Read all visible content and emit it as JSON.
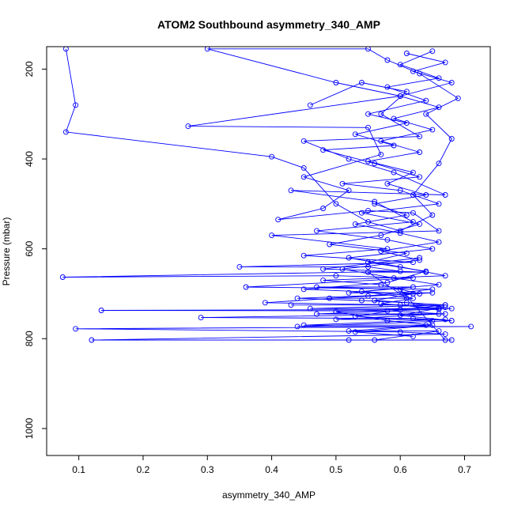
{
  "chart_data": {
    "type": "line",
    "title": "ATOM2 Southbound asymmetry_340_AMP",
    "xlabel": "asymmetry_340_AMP",
    "ylabel": "Pressure (mbar)",
    "xlim": [
      0.05,
      0.74
    ],
    "ylim": [
      1060,
      150
    ],
    "y_reversed": true,
    "x_ticks": [
      0.1,
      0.2,
      0.3,
      0.4,
      0.5,
      0.6,
      0.7
    ],
    "x_tick_labels": [
      "0.1",
      "0.2",
      "0.3",
      "0.4",
      "0.5",
      "0.6",
      "0.7"
    ],
    "y_ticks": [
      200,
      400,
      600,
      800,
      1000
    ],
    "y_tick_labels": [
      "200",
      "400",
      "600",
      "800",
      "1000"
    ],
    "grid": false,
    "line_color": "#0000ff",
    "marker": "open-circle",
    "series": [
      {
        "points": [
          [
            0.08,
            155
          ],
          [
            0.095,
            280
          ],
          [
            0.08,
            340
          ],
          [
            0.4,
            395
          ],
          [
            0.45,
            420
          ],
          [
            0.5,
            500
          ],
          [
            0.55,
            540
          ],
          [
            0.6,
            560
          ],
          [
            0.65,
            525
          ],
          [
            0.62,
            480
          ],
          [
            0.66,
            410
          ],
          [
            0.68,
            355
          ],
          [
            0.64,
            300
          ],
          [
            0.69,
            265
          ],
          [
            0.63,
            210
          ],
          [
            0.58,
            180
          ],
          [
            0.55,
            155
          ],
          [
            0.3,
            155
          ],
          [
            0.5,
            230
          ],
          [
            0.6,
            260
          ],
          [
            0.27,
            327
          ],
          [
            0.55,
            330
          ],
          [
            0.57,
            390
          ],
          [
            0.45,
            440
          ],
          [
            0.52,
            470
          ],
          [
            0.48,
            510
          ],
          [
            0.41,
            535
          ],
          [
            0.55,
            515
          ],
          [
            0.62,
            520
          ],
          [
            0.66,
            560
          ],
          [
            0.4,
            570
          ],
          [
            0.58,
            600
          ],
          [
            0.45,
            615
          ],
          [
            0.62,
            630
          ],
          [
            0.35,
            640
          ],
          [
            0.55,
            640
          ],
          [
            0.6,
            650
          ],
          [
            0.075,
            663
          ],
          [
            0.5,
            660
          ],
          [
            0.62,
            665
          ],
          [
            0.36,
            685
          ],
          [
            0.65,
            690
          ],
          [
            0.55,
            705
          ],
          [
            0.39,
            720
          ],
          [
            0.6,
            725
          ],
          [
            0.66,
            735
          ],
          [
            0.135,
            737
          ],
          [
            0.58,
            738
          ],
          [
            0.67,
            745
          ],
          [
            0.29,
            753
          ],
          [
            0.62,
            755
          ],
          [
            0.68,
            760
          ],
          [
            0.44,
            773
          ],
          [
            0.71,
            773
          ],
          [
            0.095,
            778
          ],
          [
            0.6,
            785
          ],
          [
            0.67,
            790
          ],
          [
            0.12,
            803
          ],
          [
            0.52,
            803
          ],
          [
            0.68,
            803
          ]
        ]
      },
      {
        "points": [
          [
            0.46,
            280
          ],
          [
            0.54,
            230
          ],
          [
            0.61,
            250
          ],
          [
            0.57,
            300
          ],
          [
            0.63,
            350
          ],
          [
            0.45,
            360
          ],
          [
            0.52,
            400
          ],
          [
            0.59,
            430
          ],
          [
            0.67,
            480
          ],
          [
            0.43,
            470
          ],
          [
            0.56,
            495
          ],
          [
            0.62,
            540
          ],
          [
            0.47,
            560
          ],
          [
            0.58,
            580
          ],
          [
            0.65,
            600
          ],
          [
            0.52,
            620
          ],
          [
            0.6,
            640
          ],
          [
            0.67,
            660
          ],
          [
            0.48,
            670
          ],
          [
            0.57,
            680
          ],
          [
            0.63,
            700
          ],
          [
            0.44,
            710
          ],
          [
            0.54,
            715
          ],
          [
            0.61,
            720
          ],
          [
            0.67,
            730
          ],
          [
            0.5,
            740
          ],
          [
            0.58,
            760
          ],
          [
            0.65,
            770
          ],
          [
            0.53,
            785
          ],
          [
            0.62,
            795
          ]
        ]
      },
      {
        "points": [
          [
            0.65,
            160
          ],
          [
            0.6,
            190
          ],
          [
            0.66,
            220
          ],
          [
            0.58,
            240
          ],
          [
            0.64,
            270
          ],
          [
            0.55,
            300
          ],
          [
            0.61,
            320
          ],
          [
            0.53,
            345
          ],
          [
            0.59,
            370
          ],
          [
            0.48,
            380
          ],
          [
            0.56,
            410
          ],
          [
            0.63,
            440
          ],
          [
            0.51,
            455
          ],
          [
            0.6,
            470
          ],
          [
            0.66,
            500
          ],
          [
            0.54,
            520
          ],
          [
            0.63,
            545
          ],
          [
            0.57,
            570
          ],
          [
            0.49,
            590
          ],
          [
            0.61,
            610
          ],
          [
            0.55,
            630
          ],
          [
            0.64,
            650
          ],
          [
            0.58,
            675
          ],
          [
            0.45,
            690
          ],
          [
            0.62,
            700
          ],
          [
            0.56,
            715
          ],
          [
            0.67,
            725
          ],
          [
            0.6,
            735
          ],
          [
            0.53,
            750
          ],
          [
            0.65,
            760
          ]
        ]
      },
      {
        "points": [
          [
            0.61,
            165
          ],
          [
            0.67,
            185
          ],
          [
            0.62,
            205
          ],
          [
            0.68,
            230
          ],
          [
            0.6,
            260
          ],
          [
            0.66,
            285
          ],
          [
            0.59,
            310
          ],
          [
            0.65,
            335
          ],
          [
            0.57,
            360
          ],
          [
            0.63,
            385
          ],
          [
            0.55,
            405
          ],
          [
            0.62,
            430
          ],
          [
            0.58,
            455
          ],
          [
            0.64,
            480
          ],
          [
            0.56,
            500
          ],
          [
            0.61,
            525
          ],
          [
            0.53,
            545
          ],
          [
            0.6,
            565
          ],
          [
            0.66,
            585
          ],
          [
            0.57,
            605
          ],
          [
            0.63,
            625
          ],
          [
            0.51,
            645
          ],
          [
            0.59,
            665
          ],
          [
            0.66,
            680
          ],
          [
            0.54,
            695
          ],
          [
            0.62,
            710
          ],
          [
            0.57,
            722
          ],
          [
            0.66,
            732
          ],
          [
            0.6,
            748
          ],
          [
            0.68,
            760
          ]
        ]
      },
      {
        "points": [
          [
            0.43,
            725
          ],
          [
            0.67,
            725
          ],
          [
            0.46,
            733
          ],
          [
            0.68,
            733
          ],
          [
            0.47,
            745
          ],
          [
            0.66,
            745
          ],
          [
            0.5,
            757
          ],
          [
            0.67,
            757
          ],
          [
            0.45,
            770
          ],
          [
            0.64,
            770
          ],
          [
            0.52,
            783
          ],
          [
            0.66,
            783
          ],
          [
            0.56,
            803
          ],
          [
            0.67,
            803
          ],
          [
            0.6,
            690
          ],
          [
            0.47,
            685
          ],
          [
            0.62,
            685
          ],
          [
            0.52,
            698
          ],
          [
            0.65,
            698
          ],
          [
            0.49,
            710
          ],
          [
            0.61,
            710
          ],
          [
            0.55,
            652
          ],
          [
            0.64,
            652
          ],
          [
            0.48,
            645
          ],
          [
            0.63,
            620
          ]
        ]
      }
    ]
  }
}
